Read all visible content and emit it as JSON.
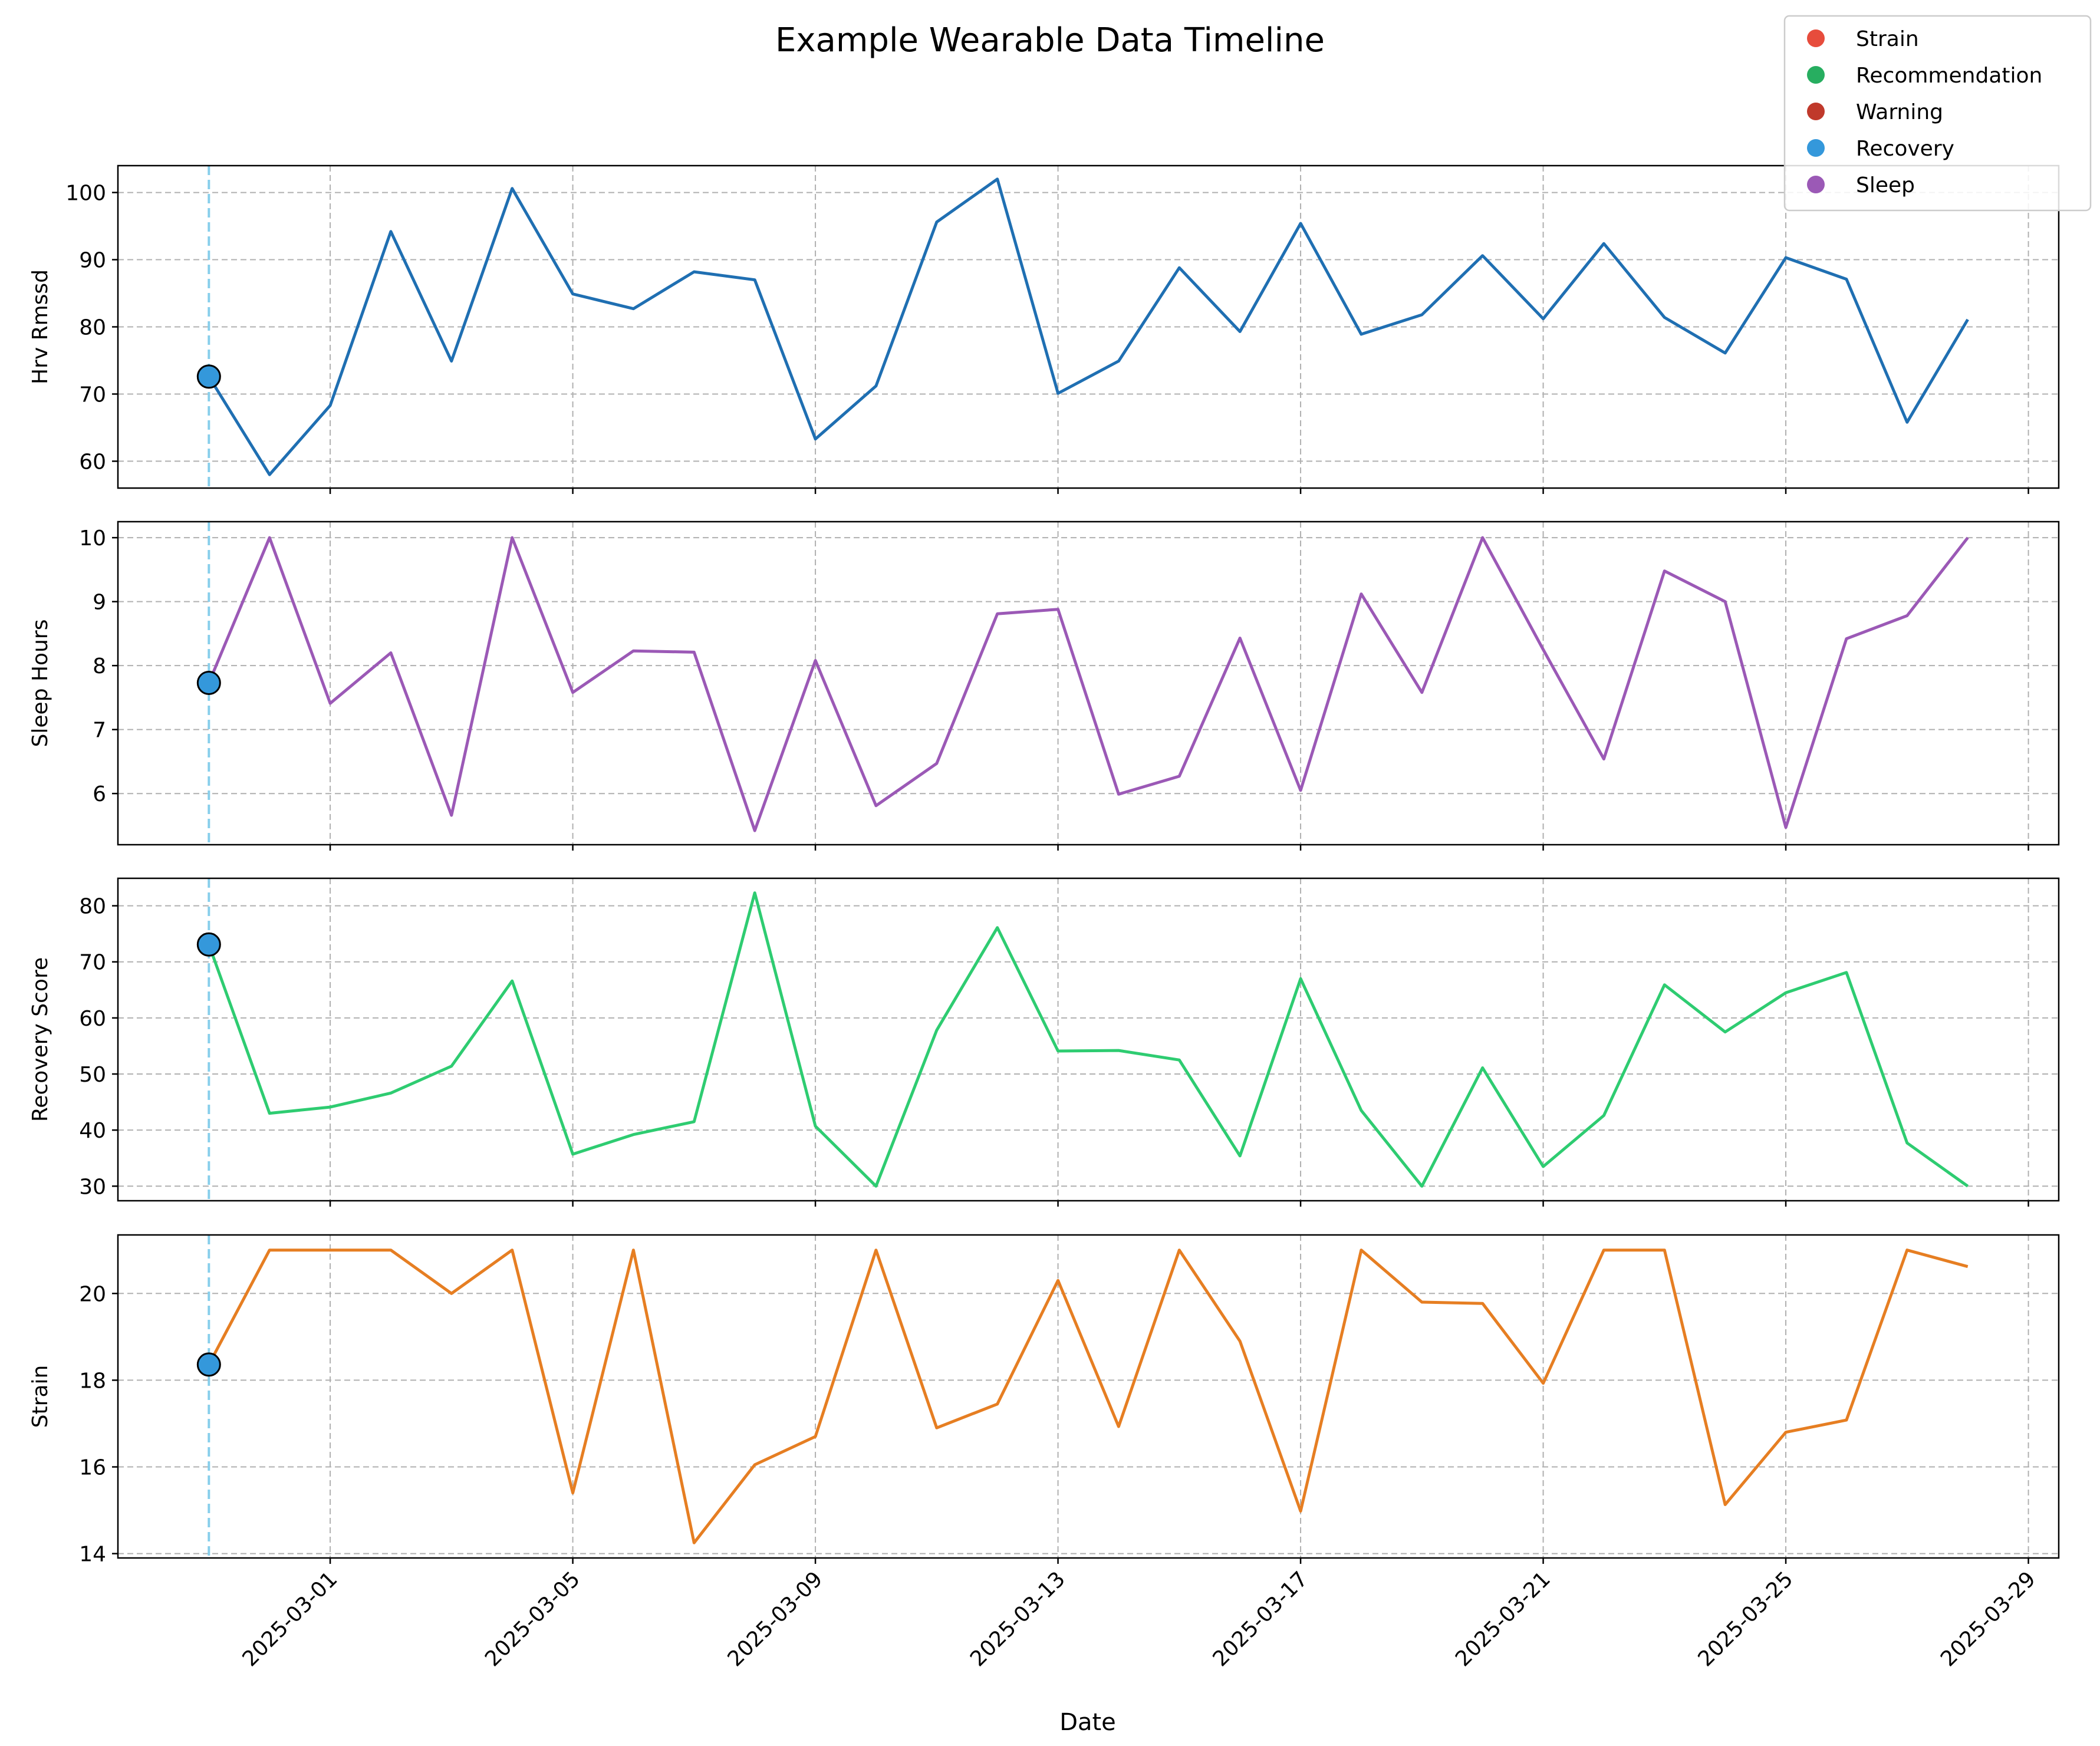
{
  "chart_data": {
    "type": "line",
    "title": "Example Wearable Data Timeline",
    "xlabel": "Date",
    "x": [
      "2025-02-27",
      "2025-02-28",
      "2025-03-01",
      "2025-03-02",
      "2025-03-03",
      "2025-03-04",
      "2025-03-05",
      "2025-03-06",
      "2025-03-07",
      "2025-03-08",
      "2025-03-09",
      "2025-03-10",
      "2025-03-11",
      "2025-03-12",
      "2025-03-13",
      "2025-03-14",
      "2025-03-15",
      "2025-03-16",
      "2025-03-17",
      "2025-03-18",
      "2025-03-19",
      "2025-03-20",
      "2025-03-21",
      "2025-03-22",
      "2025-03-23",
      "2025-03-24",
      "2025-03-25",
      "2025-03-26",
      "2025-03-27",
      "2025-03-28"
    ],
    "x_range": [
      "2025-02-25T12:00",
      "2025-03-29T12:00"
    ],
    "x_ticks": [
      "2025-03-01",
      "2025-03-05",
      "2025-03-09",
      "2025-03-13",
      "2025-03-17",
      "2025-03-21",
      "2025-03-25",
      "2025-03-29"
    ],
    "grid": true,
    "event_marker": {
      "date": "2025-02-27",
      "category": "Recovery",
      "line_color": "#87ceeb"
    },
    "panels": [
      {
        "ylabel": "Hrv Rmssd",
        "color": "#1f6fb2",
        "ylim": [
          56,
          104
        ],
        "yticks": [
          60,
          70,
          80,
          90,
          100
        ],
        "values": [
          72.6,
          58.0,
          68.3,
          94.2,
          74.9,
          100.6,
          84.9,
          82.7,
          88.2,
          87.0,
          63.3,
          71.2,
          95.6,
          102.0,
          70.1,
          74.9,
          88.8,
          79.3,
          95.4,
          78.9,
          81.8,
          90.6,
          81.2,
          92.4,
          81.4,
          76.1,
          90.3,
          87.1,
          65.8,
          81.1
        ]
      },
      {
        "ylabel": "Sleep Hours",
        "color": "#9b59b6",
        "ylim": [
          5.2,
          10.25
        ],
        "yticks": [
          6,
          7,
          8,
          9,
          10
        ],
        "values": [
          7.73,
          10.0,
          7.41,
          8.2,
          5.66,
          10.0,
          7.58,
          8.23,
          8.21,
          5.42,
          8.08,
          5.81,
          6.47,
          8.81,
          8.88,
          5.99,
          6.27,
          8.43,
          6.05,
          9.12,
          7.58,
          10.0,
          8.25,
          6.54,
          9.48,
          9.0,
          5.47,
          8.42,
          8.78,
          10.0
        ]
      },
      {
        "ylabel": "Recovery Score",
        "color": "#2ecc71",
        "ylim": [
          27.4,
          84.9
        ],
        "yticks": [
          30,
          40,
          50,
          60,
          70,
          80
        ],
        "values": [
          73.1,
          43.0,
          44.1,
          46.6,
          51.4,
          66.6,
          35.7,
          39.2,
          41.5,
          82.3,
          40.7,
          30.0,
          57.8,
          76.1,
          54.1,
          54.2,
          52.5,
          35.4,
          67.0,
          43.5,
          30.0,
          51.1,
          33.5,
          42.6,
          65.9,
          57.5,
          64.5,
          68.1,
          37.7,
          30.0
        ]
      },
      {
        "ylabel": "Strain",
        "color": "#e67e22",
        "ylim": [
          13.9,
          21.35
        ],
        "yticks": [
          14,
          16,
          18,
          20
        ],
        "values": [
          18.36,
          21.0,
          21.0,
          21.0,
          20.0,
          21.0,
          15.4,
          21.0,
          14.25,
          16.05,
          16.7,
          21.0,
          16.9,
          17.45,
          20.3,
          16.93,
          21.0,
          18.9,
          14.98,
          21.0,
          19.8,
          19.77,
          17.93,
          21.0,
          21.0,
          15.13,
          16.8,
          17.08,
          21.0,
          20.62
        ]
      }
    ],
    "legend": {
      "placement": "top-right",
      "entries": [
        {
          "label": "Strain",
          "color": "#e74c3c"
        },
        {
          "label": "Recommendation",
          "color": "#27ae60"
        },
        {
          "label": "Warning",
          "color": "#c0392b"
        },
        {
          "label": "Recovery",
          "color": "#3498db"
        },
        {
          "label": "Sleep",
          "color": "#9b59b6"
        }
      ]
    }
  }
}
